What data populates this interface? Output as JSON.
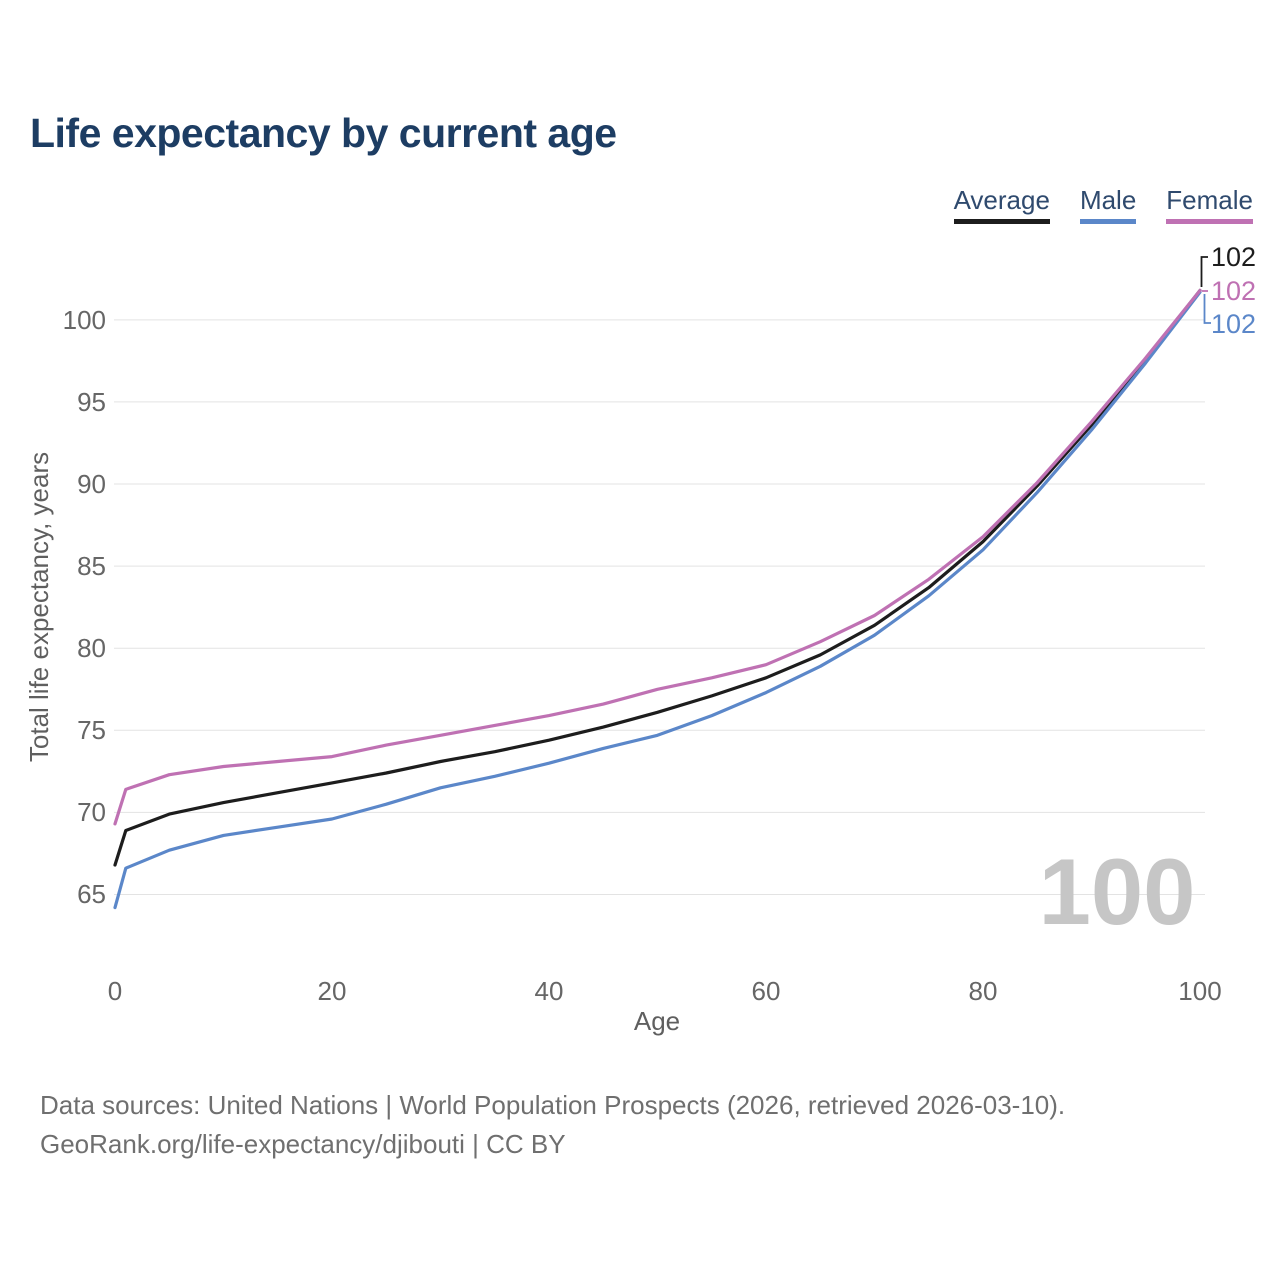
{
  "title": "Life expectancy by current age",
  "legend": {
    "items": [
      "Average",
      "Male",
      "Female"
    ]
  },
  "watermark": "100",
  "footer": {
    "line1": "Data sources: United Nations | World Population Prospects (2026, retrieved 2026-03-10).",
    "line2": "GeoRank.org/life-expectancy/djibouti | CC BY"
  },
  "chart_data": {
    "type": "line",
    "title": "Life expectancy by current age",
    "xlabel": "Age",
    "ylabel": "Total life expectancy, years",
    "xlim": [
      0,
      100
    ],
    "ylim": [
      64,
      102
    ],
    "xticks": [
      0,
      20,
      40,
      60,
      80,
      100
    ],
    "yticks": [
      65,
      70,
      75,
      80,
      85,
      90,
      95,
      100
    ],
    "grid": "horizontal",
    "legend_position": "top-right",
    "x": [
      0,
      1,
      5,
      10,
      15,
      20,
      25,
      30,
      35,
      40,
      45,
      50,
      55,
      60,
      65,
      70,
      75,
      80,
      85,
      90,
      95,
      100
    ],
    "series": [
      {
        "name": "Average",
        "color": "#1d1d1d",
        "end_label": "102",
        "values": [
          66.8,
          68.9,
          69.9,
          70.6,
          71.2,
          71.8,
          72.4,
          73.1,
          73.7,
          74.4,
          75.2,
          76.1,
          77.1,
          78.2,
          79.6,
          81.4,
          83.7,
          86.5,
          89.9,
          93.6,
          97.6,
          101.8
        ]
      },
      {
        "name": "Male",
        "color": "#5b87c9",
        "end_label": "102",
        "values": [
          64.2,
          66.6,
          67.7,
          68.6,
          69.1,
          69.6,
          70.5,
          71.5,
          72.2,
          73.0,
          73.9,
          74.7,
          75.9,
          77.3,
          78.9,
          80.8,
          83.2,
          86.0,
          89.5,
          93.3,
          97.4,
          101.7
        ]
      },
      {
        "name": "Female",
        "color": "#bf71b3",
        "end_label": "102",
        "values": [
          69.3,
          71.4,
          72.3,
          72.8,
          73.1,
          73.4,
          74.1,
          74.7,
          75.3,
          75.9,
          76.6,
          77.5,
          78.2,
          79.0,
          80.4,
          82.0,
          84.2,
          86.8,
          90.1,
          93.8,
          97.7,
          101.8
        ]
      }
    ]
  }
}
